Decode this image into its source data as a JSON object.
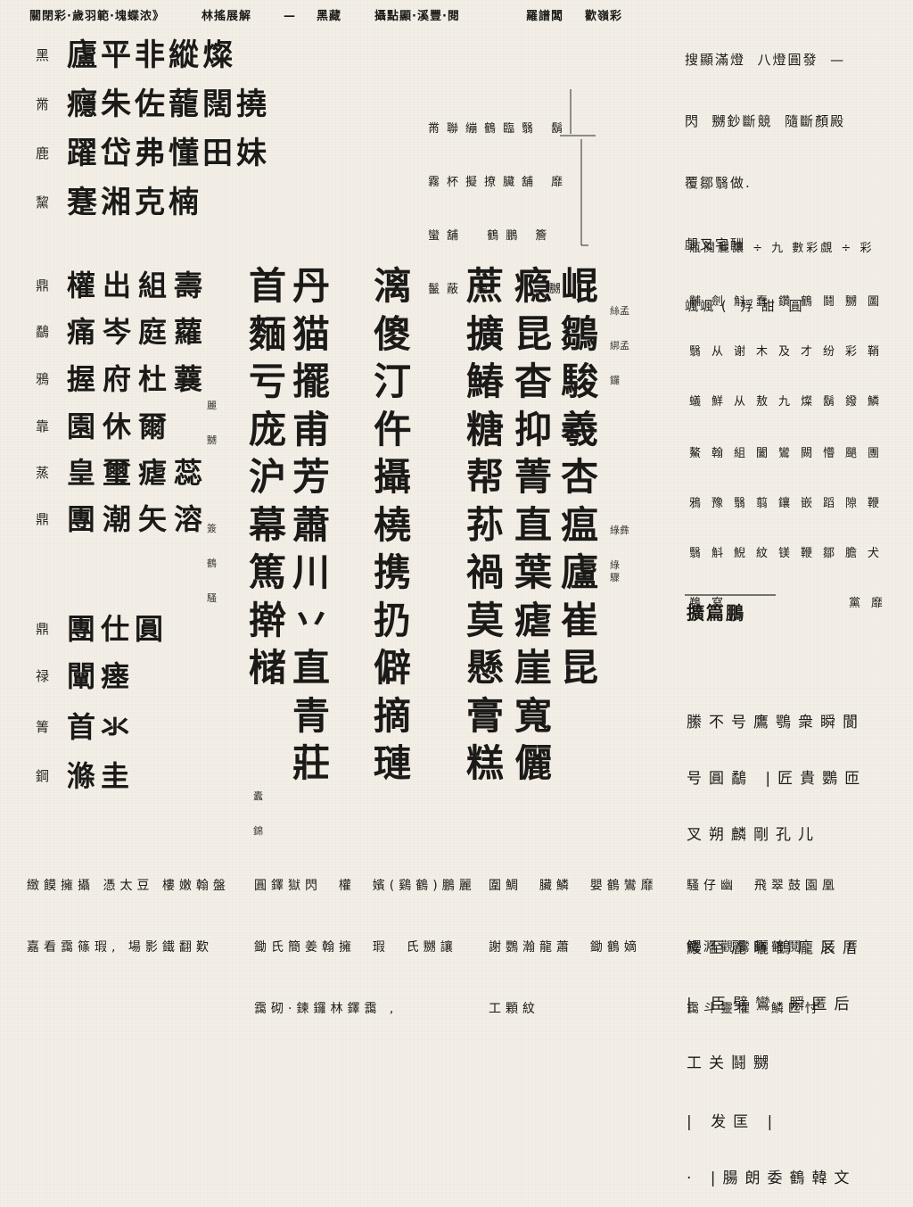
{
  "header_strip": [
    "關閉彩·歲羽範·塊蝶浓》",
    "林搖展解",
    "—",
    "黑藏",
    "攝點顯·溪豐·閱",
    "羅譜闆",
    "歡嶺彩"
  ],
  "top_right_notes": [
    "搜顯滿燈  八燈圓發  —",
    "閃  嬲鈔斷競  隨斷顏殿",
    "覆鄒翳做.",
    "覷叉宅酬",
    "颯颯 (  殍 甜  圓"
  ],
  "top_left_block": [
    {
      "label": "黑",
      "glyphs": "廬平非縱燦"
    },
    {
      "label": "黹",
      "glyphs": "癮朱佐蘢闊撓"
    },
    {
      "label": "鹿",
      "glyphs": "躍岱弗懂田妹"
    },
    {
      "label": "黧",
      "glyphs": "蹇湘克楠"
    }
  ],
  "center_small_block": [
    "黹聯繃鶴臨翳 鬍",
    "霧杯擬撩臟舖 靡",
    "蠻舖  鶴鵬 簷",
    "鬣蔽 寵     嬲"
  ],
  "right_middle_block": {
    "header": "瓶閱麗讓 ÷ 九 數彩覷 ÷ 彩",
    "rows": [
      "黼劍斛蠢鑽鶴鬪嬲圖",
      "翳从谢木及才纷彩鞘",
      "蟻鮮从敖九燦鬍鏺鱗",
      "鰲翰組闔鸞闕懵颶團",
      "鴉豫翳翦鑲嵌蹈隙鞭",
      "翳斛鯢紋镁鞭鄒膽犬",
      "鵜寫        黨靡"
    ]
  },
  "margin_notes": {
    "upper": [
      "絲孟",
      "綁孟",
      "鑼"
    ],
    "middle": [
      "綠彝",
      "綠"
    ],
    "lower": [
      "驟"
    ],
    "left_a": [
      "麗",
      "嬲"
    ],
    "left_b": [
      "簽",
      "鶴",
      "騷"
    ],
    "center": [
      "蠹",
      "錦"
    ]
  },
  "main_left_block": [
    {
      "label": "鼎",
      "glyphs": "權出組壽"
    },
    {
      "label": "鷸",
      "glyphs": "痛岑庭蘿"
    },
    {
      "label": "鴉",
      "glyphs": "握府杜蘘"
    },
    {
      "label": "靠",
      "glyphs": "園休爾"
    },
    {
      "label": "蒸",
      "glyphs": "皇璽瘧蕊"
    },
    {
      "label": "鼎",
      "glyphs": "團潮矢溶"
    }
  ],
  "main_columns": [
    {
      "glyphs": "首麵亏庞沪幕篤擀槠"
    },
    {
      "glyphs": "丹猫擺甫芳蕭川丷直青莊"
    },
    {
      "glyphs": "漓傻汀仵攝橈携扔僻摘璉"
    },
    {
      "glyphs": "蔗擴鰆糖帮荪禍莫懸膏糕"
    },
    {
      "glyphs": "瘾昆杳抑菁直葉瘧崖寬儷"
    },
    {
      "glyphs": "崐鶵駿羲杏瘟廬崔昆"
    }
  ],
  "lower_left_block": [
    {
      "label": "鼎",
      "glyphs": "團仕圓"
    },
    {
      "label": "禄",
      "glyphs": "闡瘗"
    },
    {
      "label": "箐",
      "glyphs": "首氺"
    },
    {
      "label": "鋼",
      "glyphs": "滌圭"
    }
  ],
  "right_lower_block": {
    "title": "擴篇鵬",
    "paragraph_1": [
      "縢不号鷹鶚衆瞬閬",
      "号圓鷸 |匠貴鸚匝",
      "叉朔麟剛孔儿"
    ],
    "paragraph_2": [
      "鰻至麗曬鶴龐辰厝",
      "| 臣劈鸞·瞬匿后",
      "工关鬪嬲",
      "| 发匡 |",
      "· |腸朗委鶴韓文"
    ]
  },
  "footer_blocks": [
    [
      "緻饃擁攝 憑太豆 樓嫩翰盤",
      "嘉看靄篠瑕, 場影鐵翻歎"
    ],
    [
      "圓鐸獄閃  權  嬪(鷄鶴)鵬麗",
      "鋤氏簡姜翰擁  瑕  氏嬲讓",
      "靄砌·鍊鑼林鐸靄 ,"
    ],
    [
      "圍鯛  臟鱗  嬰鶴鸞靡",
      "謝鸚瀚龍蕭  鋤鶴嫡",
      "工顆紋"
    ],
    [
      "騷仔幽  飛翠鼓園凰",
      "鐵淵觀鸞飾鶴鬩  乂 /",
      "靄斗靈懼  鱗匹忖"
    ]
  ]
}
